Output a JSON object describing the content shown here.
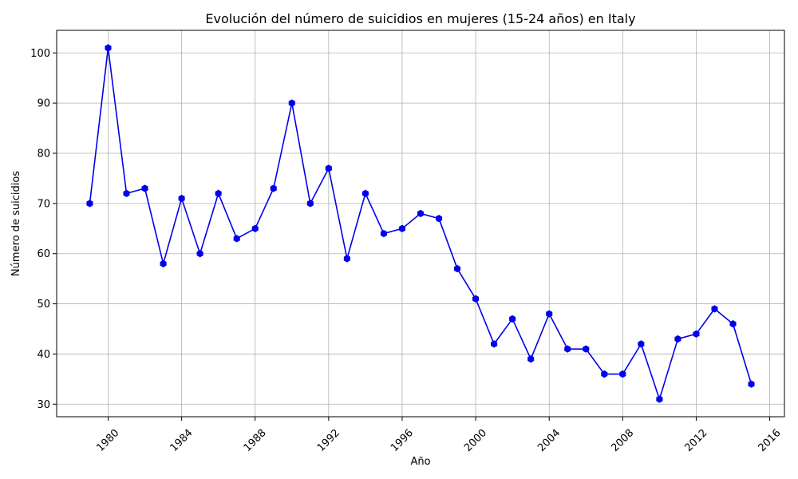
{
  "chart_data": {
    "type": "line",
    "title": "Evolución del número de suicidios en mujeres (15-24 años) en Italy",
    "xlabel": "Año",
    "ylabel": "Número de suicidios",
    "xlim": [
      1977.2,
      2016.8
    ],
    "ylim": [
      27.5,
      104.5
    ],
    "xticks": [
      1980,
      1984,
      1988,
      1992,
      1996,
      2000,
      2004,
      2008,
      2012,
      2016
    ],
    "yticks": [
      30,
      40,
      50,
      60,
      70,
      80,
      90,
      100
    ],
    "grid": true,
    "series": [
      {
        "color": "#0000ee",
        "marker": "hexagon",
        "x": [
          1979,
          1980,
          1981,
          1982,
          1983,
          1984,
          1985,
          1986,
          1987,
          1988,
          1989,
          1990,
          1991,
          1992,
          1993,
          1994,
          1995,
          1996,
          1997,
          1998,
          1999,
          2000,
          2001,
          2002,
          2003,
          2004,
          2005,
          2006,
          2007,
          2008,
          2009,
          2010,
          2011,
          2012,
          2013,
          2014,
          2015
        ],
        "y": [
          70,
          101,
          72,
          73,
          58,
          71,
          60,
          72,
          63,
          65,
          73,
          90,
          70,
          77,
          59,
          72,
          64,
          65,
          68,
          67,
          57,
          51,
          42,
          47,
          39,
          48,
          41,
          41,
          36,
          36,
          42,
          31,
          43,
          44,
          49,
          46,
          34
        ]
      }
    ]
  }
}
